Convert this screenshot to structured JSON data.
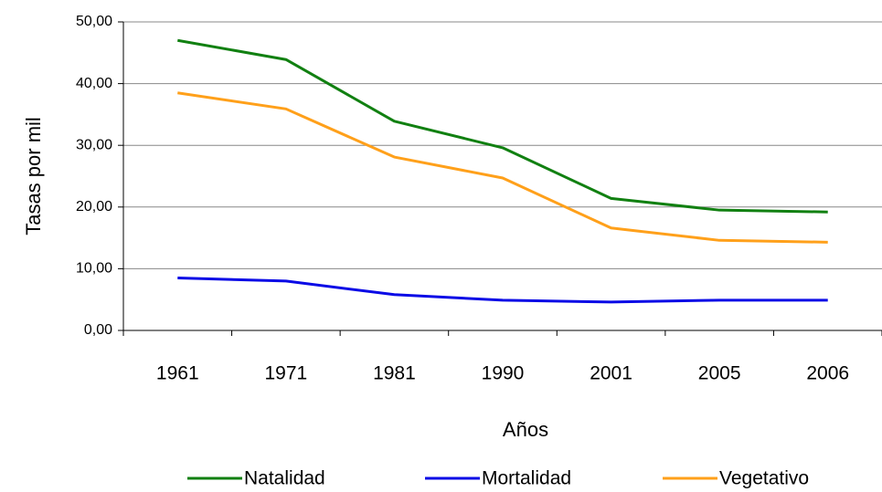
{
  "chart_data": {
    "type": "line",
    "x_label": "Años",
    "y_label": "Tasas por mil",
    "categories": [
      "1961",
      "1971",
      "1981",
      "1990",
      "2001",
      "2005",
      "2006"
    ],
    "series": [
      {
        "name": "Natalidad",
        "color": "#118011",
        "values": [
          47.0,
          43.9,
          33.9,
          29.6,
          21.4,
          19.5,
          19.2
        ]
      },
      {
        "name": "Mortalidad",
        "color": "#0a0ae6",
        "values": [
          8.5,
          8.0,
          5.8,
          4.9,
          4.6,
          4.9,
          4.9
        ]
      },
      {
        "name": "Vegetativo",
        "color": "#ffa01a",
        "values": [
          38.5,
          35.9,
          28.1,
          24.7,
          16.6,
          14.6,
          14.3
        ]
      }
    ],
    "ylim": [
      0,
      50
    ],
    "yticks": [
      {
        "value": 0,
        "label": "0,00"
      },
      {
        "value": 10,
        "label": "10,00"
      },
      {
        "value": 20,
        "label": "20,00"
      },
      {
        "value": 30,
        "label": "30,00"
      },
      {
        "value": 40,
        "label": "40,00"
      },
      {
        "value": 50,
        "label": "50,00"
      }
    ],
    "grid": true,
    "legend": "bottom"
  }
}
